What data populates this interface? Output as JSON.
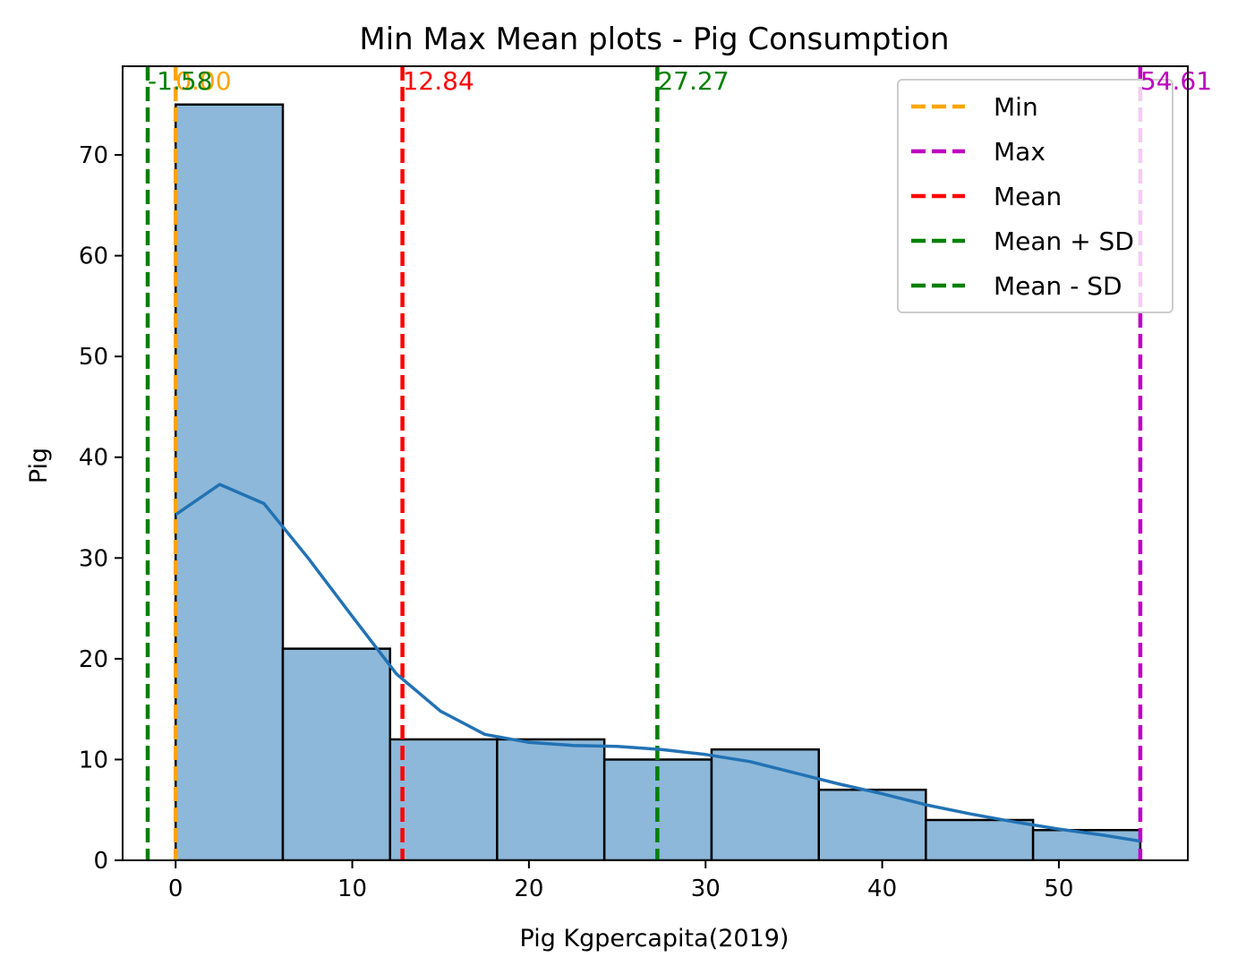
{
  "chart_data": {
    "type": "bar",
    "title": "Min Max Mean plots - Pig Consumption",
    "xlabel": "Pig Kgpercapita(2019)",
    "ylabel": "Pig",
    "xlim": [
      -3.0,
      57.3
    ],
    "ylim": [
      0,
      78.8
    ],
    "x_ticks": [
      0,
      10,
      20,
      30,
      40,
      50
    ],
    "y_ticks": [
      0,
      10,
      20,
      30,
      40,
      50,
      60,
      70
    ],
    "grid": false,
    "legend_position": "top-right",
    "bins": [
      {
        "start": 0.0,
        "end": 6.07,
        "count": 75
      },
      {
        "start": 6.07,
        "end": 12.14,
        "count": 21
      },
      {
        "start": 12.14,
        "end": 18.2,
        "count": 12
      },
      {
        "start": 18.2,
        "end": 24.27,
        "count": 12
      },
      {
        "start": 24.27,
        "end": 30.34,
        "count": 10
      },
      {
        "start": 30.34,
        "end": 36.41,
        "count": 11
      },
      {
        "start": 36.41,
        "end": 42.47,
        "count": 7
      },
      {
        "start": 42.47,
        "end": 48.54,
        "count": 4
      },
      {
        "start": 48.54,
        "end": 54.61,
        "count": 3
      }
    ],
    "kde": {
      "x": [
        0,
        2.5,
        5,
        7.5,
        10,
        12.5,
        15,
        17.5,
        20,
        22.5,
        25,
        27.5,
        30,
        32.5,
        35,
        37.5,
        40,
        42.5,
        45,
        47.5,
        50,
        52.5,
        54.6
      ],
      "y": [
        34.3,
        37.3,
        35.4,
        30.0,
        24.2,
        18.5,
        14.8,
        12.5,
        11.7,
        11.4,
        11.3,
        11.0,
        10.5,
        9.8,
        8.7,
        7.6,
        6.6,
        5.5,
        4.6,
        3.8,
        3.1,
        2.5,
        1.9
      ]
    },
    "bar_color": "#8db8d9",
    "kde_color": "#2272b4",
    "reference_lines": [
      {
        "name": "Min",
        "value": 0.0,
        "label": "0.00",
        "color": "#ffa500"
      },
      {
        "name": "Max",
        "value": 54.61,
        "label": "54.61",
        "color": "#bf00bf"
      },
      {
        "name": "Mean",
        "value": 12.84,
        "label": "12.84",
        "color": "#ff0000"
      },
      {
        "name": "Mean + SD",
        "value": 27.27,
        "label": "27.27",
        "color": "#008000"
      },
      {
        "name": "Mean - SD",
        "value": -1.58,
        "label": "-1.58",
        "color": "#008000"
      }
    ]
  }
}
